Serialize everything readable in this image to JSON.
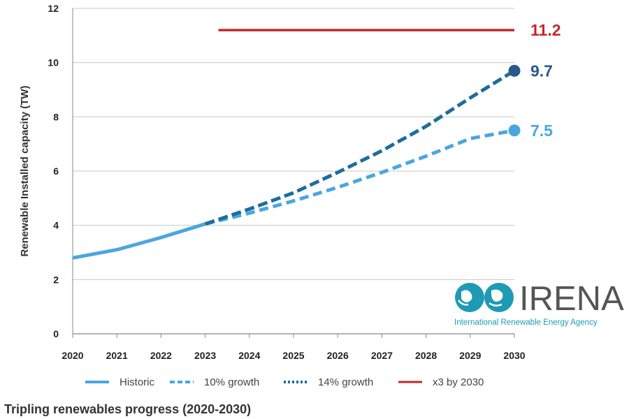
{
  "chart_data": {
    "type": "line",
    "title": "Tripling renewables progress (2020-2030)",
    "ylabel": "Renewable Installed capacity (TW)",
    "xlabel": "",
    "x_ticks": [
      "2020",
      "2021",
      "2022",
      "2023",
      "2024",
      "2025",
      "2026",
      "2027",
      "2028",
      "2029",
      "2030"
    ],
    "y_ticks": [
      "0",
      "2",
      "4",
      "6",
      "8",
      "10",
      "12"
    ],
    "xlim": [
      2020,
      2030
    ],
    "ylim": [
      0,
      12
    ],
    "grid": "horizontal",
    "legend_position": "bottom",
    "series": [
      {
        "name": "Historic",
        "color": "#4aa6df",
        "style": "solid",
        "x": [
          2020,
          2021,
          2022,
          2023
        ],
        "y": [
          2.8,
          3.1,
          3.55,
          4.05
        ]
      },
      {
        "name": "10% growth",
        "color": "#4aa6df",
        "style": "dashed",
        "x": [
          2023,
          2024,
          2025,
          2026,
          2027,
          2028,
          2029,
          2030
        ],
        "y": [
          4.05,
          4.45,
          4.9,
          5.4,
          5.95,
          6.55,
          7.2,
          7.5
        ]
      },
      {
        "name": "14% growth",
        "color": "#1d6d9c",
        "style": "dotted",
        "x": [
          2023,
          2024,
          2025,
          2026,
          2027,
          2028,
          2029,
          2030
        ],
        "y": [
          4.05,
          4.6,
          5.2,
          5.95,
          6.75,
          7.65,
          8.7,
          9.7
        ]
      },
      {
        "name": "x3 by 2030",
        "color": "#c0292b",
        "style": "solid",
        "x": [
          2023.3,
          2030
        ],
        "y": [
          11.2,
          11.2
        ]
      }
    ],
    "end_labels": [
      {
        "text": "11.2",
        "value": 11.2,
        "color": "#c0292b"
      },
      {
        "text": "9.7",
        "value": 9.7,
        "color": "#28598e"
      },
      {
        "text": "7.5",
        "value": 7.5,
        "color": "#4aa6df"
      }
    ]
  },
  "logo": {
    "name": "IRENA",
    "subtitle": "International Renewable Energy Agency"
  }
}
